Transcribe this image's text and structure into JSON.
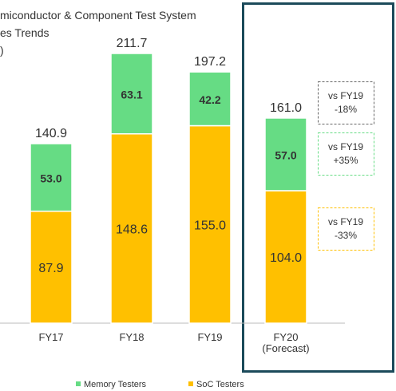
{
  "chart_data": {
    "type": "stacked_bar",
    "title": "miconductor & Component Test System\nes Trends\n)",
    "categories": [
      "FY17",
      "FY18",
      "FY19",
      "FY20\n(Forecast)"
    ],
    "series": [
      {
        "name": "SoC Testers",
        "color": "#FFC000",
        "values": [
          87.9,
          148.6,
          155.0,
          104.0
        ],
        "value_labels": [
          "87.9",
          "148.6",
          "155.0",
          "104.0"
        ]
      },
      {
        "name": "Memory Testers",
        "color": "#66DC84",
        "values": [
          53.0,
          63.1,
          42.2,
          57.0
        ],
        "value_labels": [
          "53.0",
          "63.1",
          "42.2",
          "57.0"
        ]
      }
    ],
    "totals": [
      140.9,
      211.7,
      197.2,
      161.0
    ],
    "total_labels": [
      "140.9",
      "211.7",
      "197.2",
      "161.0"
    ],
    "annotations": [
      {
        "text": "vs FY19\n-18%",
        "color": "#666666"
      },
      {
        "text": "vs FY19\n+35%",
        "color": "#66DC84"
      },
      {
        "text": "vs FY19\n-33%",
        "color": "#FFC000"
      }
    ]
  }
}
